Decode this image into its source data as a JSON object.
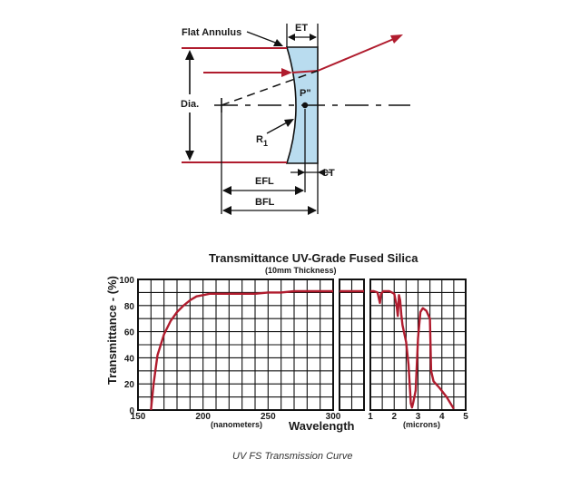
{
  "colors": {
    "ray": "#b01c2e",
    "lens_fill": "#b9dcef",
    "ink": "#111111",
    "grid": "#111111"
  },
  "diagram": {
    "labels": {
      "flat_annulus": "Flat Annulus",
      "et": "ET",
      "dia": "Dia.",
      "p": "P\"",
      "r": "R",
      "r_sub": "1",
      "ct": "CT",
      "efl": "EFL",
      "bfl": "BFL"
    }
  },
  "chart": {
    "title": "Transmittance UV-Grade Fused Silica",
    "subtitle": "(10mm Thickness)",
    "ylabel": "Transmittance - (%)",
    "xlabel": "Wavelength",
    "unit_left": "(nanometers)",
    "unit_right": "(microns)",
    "caption": "UV FS Transmission Curve"
  },
  "chart_data": {
    "type": "line",
    "title": "Transmittance UV-Grade Fused Silica",
    "subtitle": "(10mm Thickness)",
    "ylabel": "Transmittance - (%)",
    "xlabel": "Wavelength",
    "ylim": [
      0,
      100
    ],
    "yticks": [
      "0",
      "20",
      "40",
      "60",
      "80",
      "100"
    ],
    "panels": [
      {
        "unit": "(nanometers)",
        "xlim": [
          150,
          300
        ],
        "xticks": [
          "150",
          "200",
          "250",
          "300"
        ],
        "x": [
          160,
          162,
          165,
          170,
          175,
          180,
          185,
          190,
          195,
          200,
          205,
          210,
          220,
          230,
          240,
          250,
          260,
          270,
          280,
          290,
          300
        ],
        "y": [
          0,
          20,
          42,
          58,
          68,
          75,
          80,
          84,
          87,
          88,
          89,
          89,
          89,
          89,
          89,
          90,
          90,
          91,
          91,
          91,
          91
        ]
      },
      {
        "unit": "",
        "xlim": [
          0,
          1
        ],
        "xticks": [],
        "x": [
          0,
          1
        ],
        "y": [
          91,
          91
        ]
      },
      {
        "unit": "(microns)",
        "xlim": [
          1,
          5
        ],
        "xticks": [
          "1",
          "2",
          "3",
          "4",
          "5"
        ],
        "x": [
          1.0,
          1.15,
          1.3,
          1.35,
          1.4,
          1.45,
          1.55,
          1.8,
          2.0,
          2.1,
          2.15,
          2.2,
          2.25,
          2.3,
          2.35,
          2.5,
          2.6,
          2.7,
          2.75,
          2.8,
          2.9,
          3.0,
          3.1,
          3.2,
          3.35,
          3.5,
          3.55,
          3.65,
          3.9,
          4.2,
          4.5
        ],
        "y": [
          91,
          91,
          90,
          86,
          82,
          89,
          91,
          91,
          89,
          80,
          72,
          88,
          84,
          73,
          65,
          52,
          35,
          5,
          2,
          6,
          15,
          55,
          75,
          78,
          76,
          70,
          30,
          22,
          17,
          10,
          1
        ]
      }
    ]
  }
}
